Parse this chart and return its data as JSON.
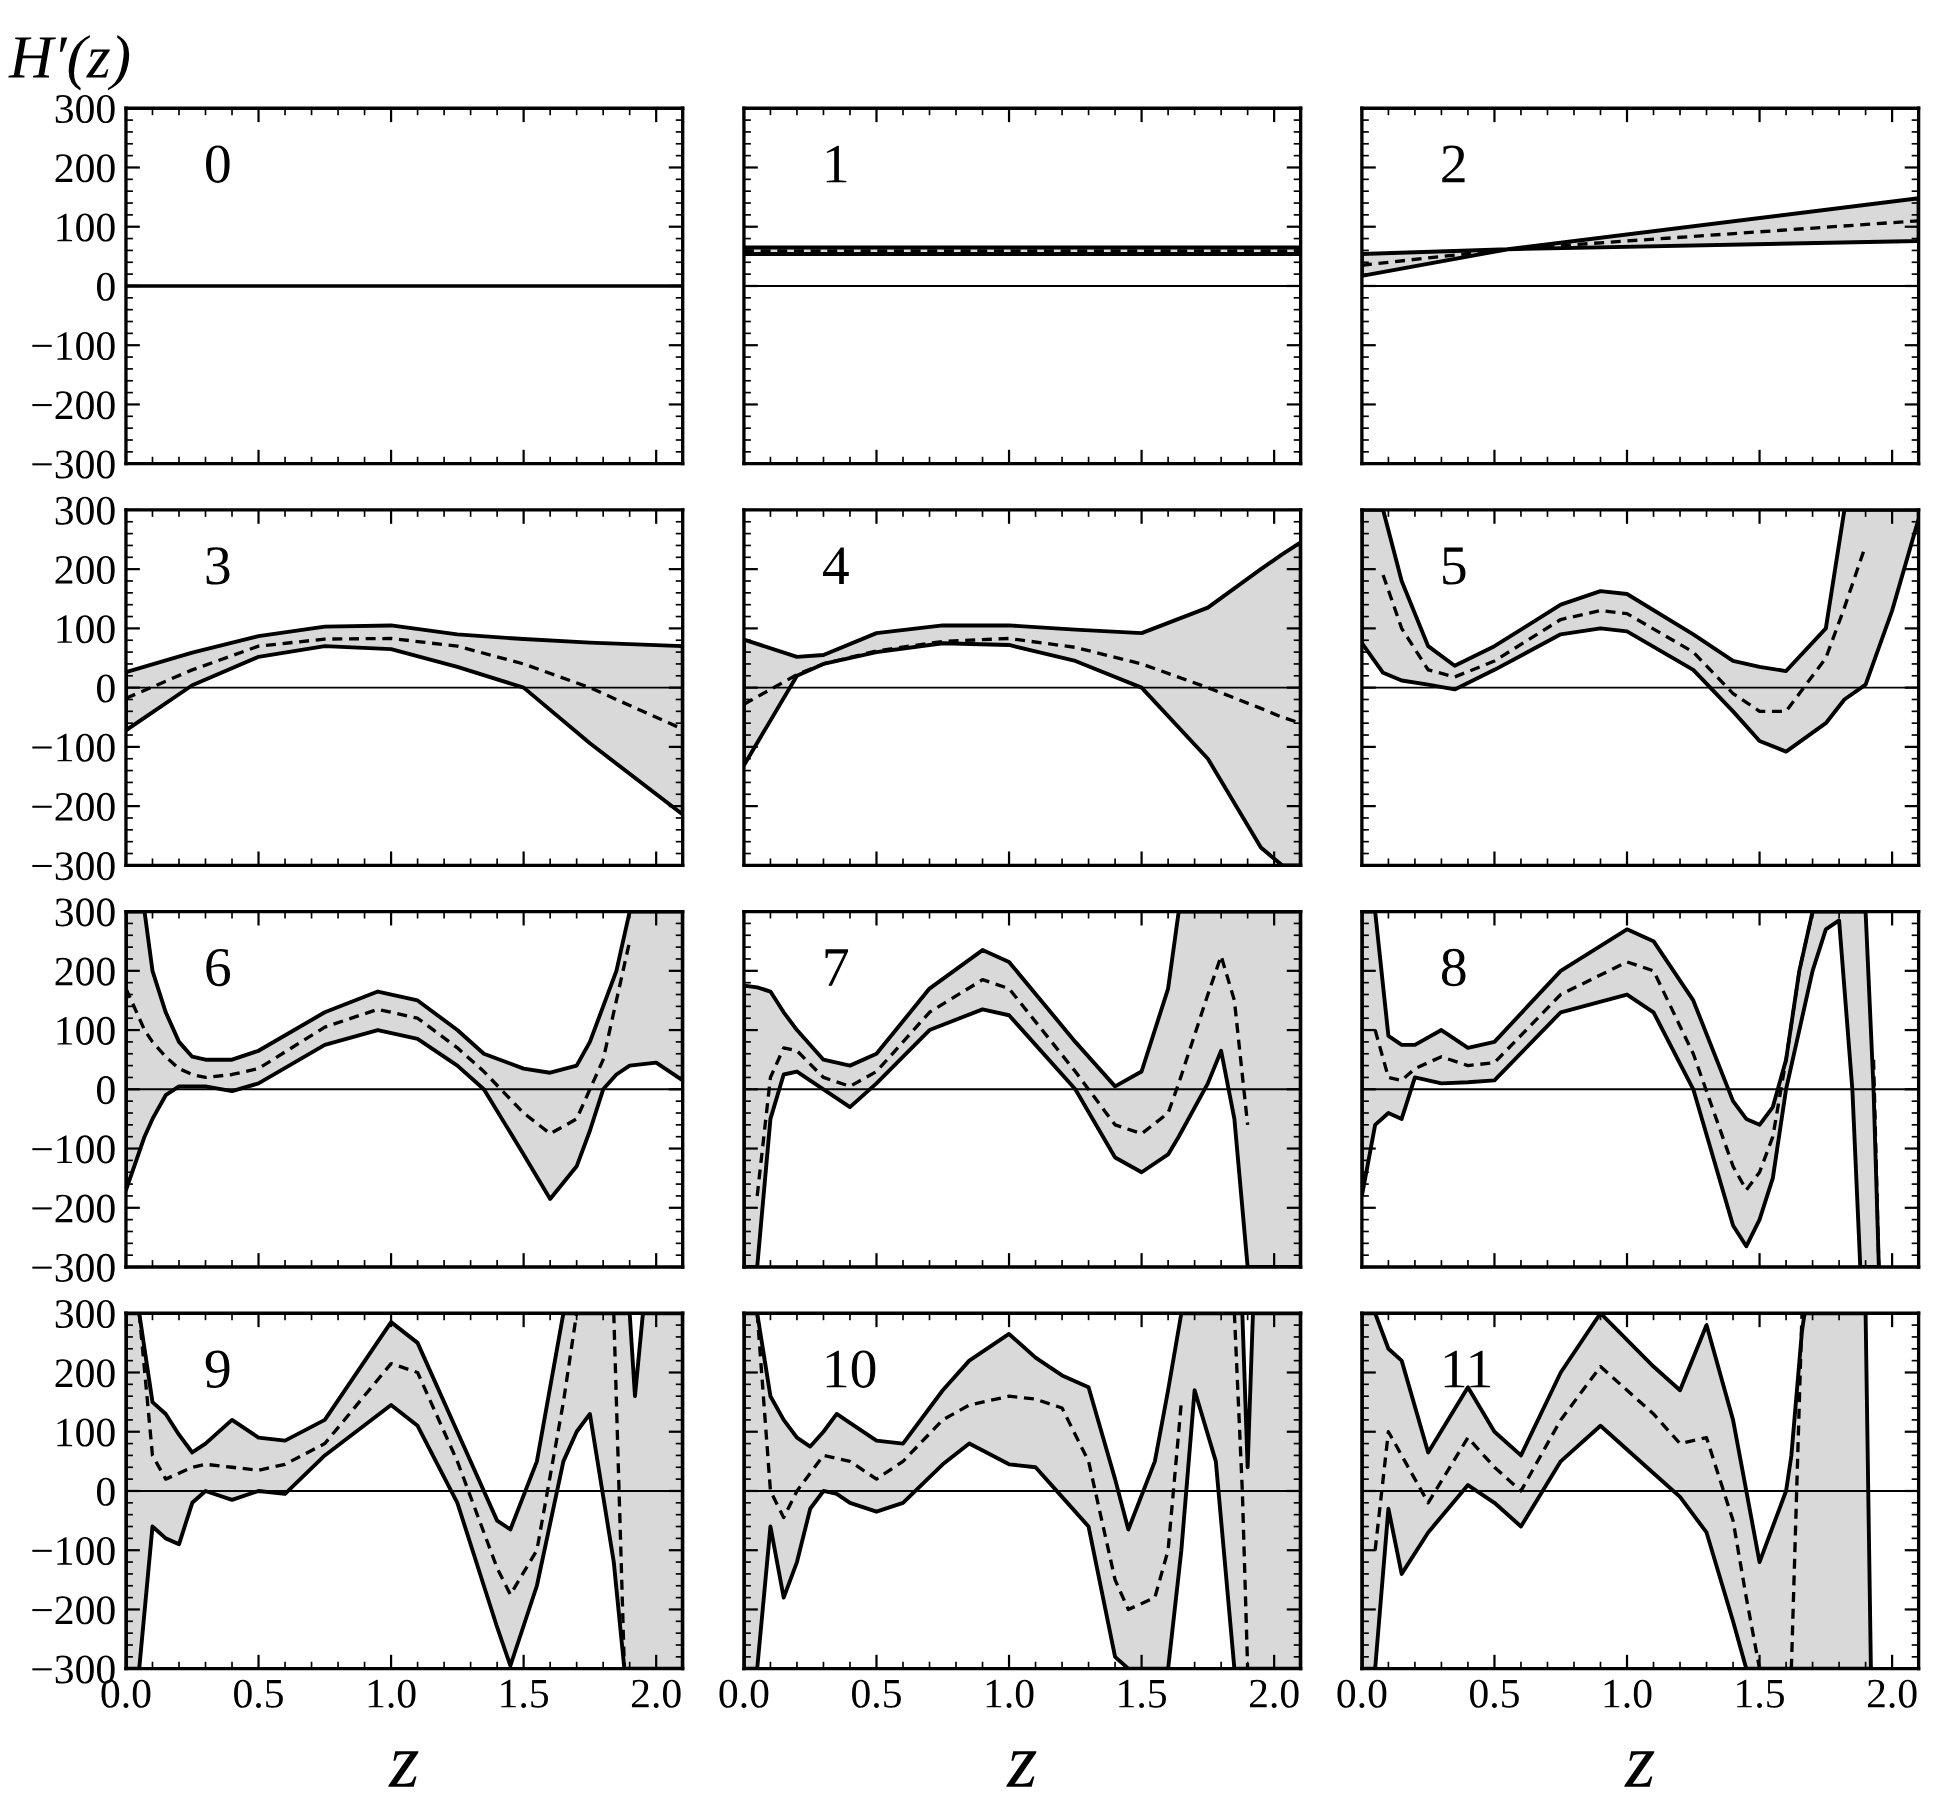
{
  "chart_data": [
    {
      "type": "line",
      "annotations": [
        "0"
      ],
      "ylabel": "H′(z)",
      "xlim": [
        0,
        2.1
      ],
      "ylim": [
        -300,
        300
      ],
      "tick_labels": "y",
      "xticks": [
        {
          "value": 0,
          "label": null
        },
        {
          "value": 0.5,
          "label": null
        },
        {
          "value": 1,
          "label": null
        },
        {
          "value": 1.5,
          "label": null
        },
        {
          "value": 2,
          "label": null
        }
      ],
      "yticks": [
        {
          "value": -300,
          "label": "−300"
        },
        {
          "value": -200,
          "label": "−200"
        },
        {
          "value": -100,
          "label": "−100"
        },
        0,
        100,
        200,
        300
      ],
      "series": [
        {
          "color": "#000000",
          "line_style": "solid",
          "x": [
            0,
            2.1
          ],
          "values": [
            0,
            0
          ]
        }
      ]
    },
    {
      "type": "line",
      "annotations": [
        "1"
      ],
      "xlim": [
        0,
        2.1
      ],
      "ylim": [
        -300,
        300
      ],
      "tick_labels": false,
      "xticks": [
        {
          "value": 0,
          "label": null
        },
        {
          "value": 0.5,
          "label": null
        },
        {
          "value": 1,
          "label": null
        },
        {
          "value": 1.5,
          "label": null
        },
        {
          "value": 2,
          "label": null
        }
      ],
      "yticks": [
        {
          "value": -300,
          "label": null
        },
        {
          "value": -200,
          "label": null
        },
        {
          "value": -100,
          "label": null
        },
        {
          "value": 0,
          "label": null
        },
        {
          "value": 100,
          "label": null
        },
        {
          "value": 200,
          "label": null
        },
        {
          "value": 300,
          "label": null
        }
      ],
      "ref_lines": [
        {
          "axis": "y",
          "value": 0,
          "color": "#000000"
        }
      ],
      "series": [
        {
          "color": "#000000",
          "line_style": "dashed",
          "x": [
            0,
            2.1
          ],
          "values": [
            59,
            59
          ],
          "lower": [
            54,
            54
          ],
          "upper": [
            65,
            65
          ]
        }
      ]
    },
    {
      "type": "line",
      "annotations": [
        "2"
      ],
      "xlim": [
        0,
        2.1
      ],
      "ylim": [
        -300,
        300
      ],
      "tick_labels": false,
      "xticks": [
        {
          "value": 0,
          "label": null
        },
        {
          "value": 0.5,
          "label": null
        },
        {
          "value": 1,
          "label": null
        },
        {
          "value": 1.5,
          "label": null
        },
        {
          "value": 2,
          "label": null
        }
      ],
      "yticks": [
        {
          "value": -300,
          "label": null
        },
        {
          "value": -200,
          "label": null
        },
        {
          "value": -100,
          "label": null
        },
        {
          "value": 0,
          "label": null
        },
        {
          "value": 100,
          "label": null
        },
        {
          "value": 200,
          "label": null
        },
        {
          "value": 300,
          "label": null
        }
      ],
      "ref_lines": [
        {
          "axis": "y",
          "value": 0,
          "color": "#000000"
        }
      ],
      "series": [
        {
          "color": "#000000",
          "line_style": "dashed",
          "x": [
            0,
            0.55,
            2.1
          ],
          "values": [
            35,
            62,
            110
          ],
          "lower": [
            17,
            62,
            76
          ],
          "upper": [
            54,
            62,
            148
          ]
        }
      ]
    },
    {
      "type": "line",
      "annotations": [
        "3"
      ],
      "xlim": [
        0,
        2.1
      ],
      "ylim": [
        -300,
        300
      ],
      "tick_labels": "y",
      "xticks": [
        {
          "value": 0,
          "label": null
        },
        {
          "value": 0.5,
          "label": null
        },
        {
          "value": 1,
          "label": null
        },
        {
          "value": 1.5,
          "label": null
        },
        {
          "value": 2,
          "label": null
        }
      ],
      "yticks": [
        {
          "value": -300,
          "label": "−300"
        },
        {
          "value": -200,
          "label": "−200"
        },
        {
          "value": -100,
          "label": "−100"
        },
        0,
        100,
        200,
        300
      ],
      "ref_lines": [
        {
          "axis": "y",
          "value": 0,
          "color": "#000000"
        }
      ],
      "series": [
        {
          "color": "#000000",
          "line_style": "dashed",
          "x": [
            0,
            0.25,
            0.5,
            0.75,
            1.0,
            1.25,
            1.5,
            1.75,
            2.1
          ],
          "values": [
            -18,
            30,
            70,
            82,
            83,
            70,
            40,
            0,
            -70
          ],
          "lower": [
            -72,
            4,
            52,
            70,
            65,
            35,
            0,
            -94,
            -214
          ],
          "upper": [
            26,
            59,
            87,
            103,
            105,
            90,
            82,
            76,
            70
          ]
        }
      ]
    },
    {
      "type": "line",
      "annotations": [
        "4"
      ],
      "xlim": [
        0,
        2.1
      ],
      "ylim": [
        -300,
        300
      ],
      "tick_labels": false,
      "xticks": [
        {
          "value": 0,
          "label": null
        },
        {
          "value": 0.5,
          "label": null
        },
        {
          "value": 1,
          "label": null
        },
        {
          "value": 1.5,
          "label": null
        },
        {
          "value": 2,
          "label": null
        }
      ],
      "yticks": [
        {
          "value": -300,
          "label": null
        },
        {
          "value": -200,
          "label": null
        },
        {
          "value": -100,
          "label": null
        },
        {
          "value": 0,
          "label": null
        },
        {
          "value": 100,
          "label": null
        },
        {
          "value": 200,
          "label": null
        },
        {
          "value": 300,
          "label": null
        }
      ],
      "ref_lines": [
        {
          "axis": "y",
          "value": 0,
          "color": "#000000"
        }
      ],
      "series": [
        {
          "color": "#000000",
          "line_style": "dashed",
          "x": [
            0,
            0.2,
            0.3,
            0.5,
            0.75,
            1.0,
            1.25,
            1.5,
            1.75,
            1.95,
            2.03,
            2.1
          ],
          "values": [
            -28,
            22,
            40,
            62,
            78,
            83,
            68,
            40,
            0,
            -35,
            -50,
            -60
          ],
          "lower": [
            -131,
            20,
            40,
            60,
            75,
            72,
            45,
            0,
            -120,
            -270,
            -300,
            -300
          ],
          "upper": [
            81,
            52,
            55,
            92,
            105,
            105,
            98,
            92,
            135,
            200,
            225,
            245
          ]
        }
      ]
    },
    {
      "type": "line",
      "annotations": [
        "5"
      ],
      "xlim": [
        0,
        2.1
      ],
      "ylim": [
        -300,
        300
      ],
      "tick_labels": false,
      "xticks": [
        {
          "value": 0,
          "label": null
        },
        {
          "value": 0.5,
          "label": null
        },
        {
          "value": 1,
          "label": null
        },
        {
          "value": 1.5,
          "label": null
        },
        {
          "value": 2,
          "label": null
        }
      ],
      "yticks": [
        {
          "value": -300,
          "label": null
        },
        {
          "value": -200,
          "label": null
        },
        {
          "value": -100,
          "label": null
        },
        {
          "value": 0,
          "label": null
        },
        {
          "value": 100,
          "label": null
        },
        {
          "value": 200,
          "label": null
        },
        {
          "value": 300,
          "label": null
        }
      ],
      "ref_lines": [
        {
          "axis": "y",
          "value": 0,
          "color": "#000000"
        }
      ],
      "series": [
        {
          "color": "#000000",
          "line_style": "dashed",
          "x": [
            0,
            0.08,
            0.15,
            0.25,
            0.35,
            0.5,
            0.75,
            0.9,
            1.0,
            1.25,
            1.4,
            1.5,
            1.6,
            1.75,
            1.82,
            1.9,
            2.0,
            2.1
          ],
          "values": [
            null,
            190,
            100,
            30,
            18,
            45,
            115,
            130,
            125,
            60,
            -10,
            -40,
            -40,
            50,
            135,
            240,
            null,
            null
          ],
          "lower": [
            75,
            25,
            12,
            5,
            -3,
            30,
            90,
            100,
            95,
            30,
            -40,
            -90,
            -108,
            -60,
            -20,
            5,
            130,
            285
          ],
          "upper": [
            300,
            300,
            180,
            70,
            37,
            70,
            140,
            163,
            158,
            90,
            45,
            35,
            28,
            100,
            300,
            300,
            300,
            300
          ]
        }
      ]
    },
    {
      "type": "line",
      "annotations": [
        "6"
      ],
      "xlim": [
        0,
        2.1
      ],
      "ylim": [
        -300,
        300
      ],
      "tick_labels": "y",
      "xticks": [
        {
          "value": 0,
          "label": null
        },
        {
          "value": 0.5,
          "label": null
        },
        {
          "value": 1,
          "label": null
        },
        {
          "value": 1.5,
          "label": null
        },
        {
          "value": 2,
          "label": null
        }
      ],
      "yticks": [
        {
          "value": -300,
          "label": "−300"
        },
        {
          "value": -200,
          "label": "−200"
        },
        {
          "value": -100,
          "label": "−100"
        },
        0,
        100,
        200,
        300
      ],
      "ref_lines": [
        {
          "axis": "y",
          "value": 0,
          "color": "#000000"
        }
      ],
      "series": [
        {
          "color": "#000000",
          "line_style": "dashed",
          "x": [
            0,
            0.07,
            0.1,
            0.15,
            0.2,
            0.25,
            0.3,
            0.4,
            0.5,
            0.75,
            0.95,
            1.1,
            1.25,
            1.35,
            1.5,
            1.6,
            1.7,
            1.75,
            1.8,
            1.85,
            1.9,
            2.0,
            2.1
          ],
          "values": [
            170,
            100,
            80,
            55,
            35,
            25,
            20,
            25,
            35,
            105,
            135,
            120,
            70,
            30,
            -40,
            -75,
            -50,
            0,
            50,
            150,
            250,
            null,
            null
          ],
          "lower": [
            -170,
            -80,
            -50,
            -10,
            5,
            5,
            5,
            -3,
            10,
            75,
            100,
            85,
            40,
            0,
            -110,
            -185,
            -130,
            -70,
            0,
            25,
            40,
            45,
            15
          ],
          "upper": [
            300,
            300,
            200,
            130,
            80,
            55,
            50,
            50,
            65,
            130,
            165,
            150,
            100,
            60,
            35,
            28,
            40,
            80,
            140,
            200,
            300,
            300,
            300
          ]
        }
      ]
    },
    {
      "type": "line",
      "annotations": [
        "7"
      ],
      "xlim": [
        0,
        2.1
      ],
      "ylim": [
        -300,
        300
      ],
      "tick_labels": false,
      "xticks": [
        {
          "value": 0,
          "label": null
        },
        {
          "value": 0.5,
          "label": null
        },
        {
          "value": 1,
          "label": null
        },
        {
          "value": 1.5,
          "label": null
        },
        {
          "value": 2,
          "label": null
        }
      ],
      "yticks": [
        {
          "value": -300,
          "label": null
        },
        {
          "value": -200,
          "label": null
        },
        {
          "value": -100,
          "label": null
        },
        {
          "value": 0,
          "label": null
        },
        {
          "value": 100,
          "label": null
        },
        {
          "value": 200,
          "label": null
        },
        {
          "value": 300,
          "label": null
        }
      ],
      "ref_lines": [
        {
          "axis": "y",
          "value": 0,
          "color": "#000000"
        }
      ],
      "series": [
        {
          "color": "#000000",
          "line_style": "dashed",
          "x": [
            0,
            0.05,
            0.1,
            0.15,
            0.2,
            0.3,
            0.4,
            0.5,
            0.7,
            0.9,
            1.0,
            1.25,
            1.4,
            1.5,
            1.6,
            1.64,
            1.75,
            1.8,
            1.85,
            1.9,
            2.0,
            2.1
          ],
          "values": [
            null,
            -180,
            20,
            70,
            65,
            20,
            5,
            30,
            130,
            185,
            170,
            30,
            -60,
            -75,
            -40,
            10,
            160,
            225,
            150,
            -60,
            null,
            null
          ],
          "lower": [
            -300,
            -300,
            -50,
            25,
            30,
            0,
            -30,
            10,
            100,
            135,
            125,
            0,
            -115,
            -140,
            -110,
            -80,
            10,
            65,
            -50,
            -300,
            -300,
            -300
          ],
          "upper": [
            175,
            172,
            165,
            130,
            100,
            50,
            40,
            60,
            170,
            235,
            215,
            80,
            5,
            30,
            170,
            300,
            300,
            300,
            300,
            300,
            300,
            300
          ]
        }
      ]
    },
    {
      "type": "line",
      "annotations": [
        "8"
      ],
      "xlim": [
        0,
        2.1
      ],
      "ylim": [
        -300,
        300
      ],
      "tick_labels": false,
      "xticks": [
        {
          "value": 0,
          "label": null
        },
        {
          "value": 0.5,
          "label": null
        },
        {
          "value": 1,
          "label": null
        },
        {
          "value": 1.5,
          "label": null
        },
        {
          "value": 2,
          "label": null
        }
      ],
      "yticks": [
        {
          "value": -300,
          "label": null
        },
        {
          "value": -200,
          "label": null
        },
        {
          "value": -100,
          "label": null
        },
        {
          "value": 0,
          "label": null
        },
        {
          "value": 100,
          "label": null
        },
        {
          "value": 200,
          "label": null
        },
        {
          "value": 300,
          "label": null
        }
      ],
      "ref_lines": [
        {
          "axis": "y",
          "value": 0,
          "color": "#000000"
        }
      ],
      "series": [
        {
          "color": "#000000",
          "line_style": "dashed",
          "x": [
            0,
            0.05,
            0.1,
            0.15,
            0.2,
            0.3,
            0.4,
            0.5,
            0.75,
            1.0,
            1.1,
            1.25,
            1.4,
            1.45,
            1.5,
            1.55,
            1.6,
            1.65,
            1.7,
            1.75,
            1.8,
            1.85,
            1.88,
            1.9,
            1.93,
            1.95
          ],
          "values": [
            null,
            100,
            20,
            15,
            35,
            55,
            40,
            45,
            160,
            215,
            200,
            60,
            -130,
            -170,
            -140,
            -80,
            50,
            200,
            300,
            null,
            null,
            null,
            null,
            null,
            50,
            -300
          ],
          "lower": [
            -180,
            -60,
            -40,
            -50,
            20,
            10,
            12,
            15,
            130,
            160,
            130,
            0,
            -230,
            -265,
            -220,
            -150,
            0,
            100,
            200,
            270,
            285,
            0,
            -300,
            -300,
            -300,
            -300
          ],
          "upper": [
            300,
            300,
            90,
            75,
            75,
            100,
            70,
            80,
            200,
            270,
            250,
            150,
            -20,
            -50,
            -60,
            -30,
            50,
            200,
            300,
            300,
            300,
            300,
            300,
            300,
            0,
            -300
          ]
        }
      ]
    },
    {
      "type": "line",
      "annotations": [
        "9"
      ],
      "xlabel": "z",
      "xlim": [
        0,
        2.1
      ],
      "ylim": [
        -300,
        300
      ],
      "xticks": [
        {
          "value": 0,
          "label": "0.0"
        },
        {
          "value": 0.5,
          "label": "0.5"
        },
        {
          "value": 1,
          "label": "1.0"
        },
        {
          "value": 1.5,
          "label": "1.5"
        },
        {
          "value": 2,
          "label": "2.0"
        }
      ],
      "yticks": [
        {
          "value": -300,
          "label": "−300"
        },
        {
          "value": -200,
          "label": "−200"
        },
        {
          "value": -100,
          "label": "−100"
        },
        0,
        100,
        200,
        300
      ],
      "ref_lines": [
        {
          "axis": "y",
          "value": 0,
          "color": "#000000"
        }
      ],
      "series": [
        {
          "color": "#000000",
          "line_style": "dashed",
          "x": [
            0,
            0.05,
            0.1,
            0.15,
            0.2,
            0.25,
            0.3,
            0.4,
            0.5,
            0.6,
            0.75,
            1.0,
            1.1,
            1.25,
            1.4,
            1.45,
            1.55,
            1.65,
            1.7,
            1.75,
            1.84,
            1.88,
            1.9,
            1.92,
            1.95,
            2.0,
            2.1
          ],
          "values": [
            null,
            300,
            60,
            20,
            30,
            40,
            45,
            40,
            35,
            45,
            80,
            215,
            200,
            50,
            -130,
            -175,
            -100,
            150,
            300,
            null,
            300,
            -300,
            null,
            null,
            null,
            null,
            null
          ],
          "lower": [
            -300,
            -300,
            -60,
            -80,
            -90,
            -20,
            0,
            -15,
            0,
            -5,
            60,
            145,
            110,
            -20,
            -230,
            -295,
            -160,
            50,
            100,
            130,
            -120,
            -300,
            -300,
            -300,
            -300,
            -300,
            -300
          ],
          "upper": [
            300,
            300,
            150,
            130,
            95,
            65,
            80,
            120,
            90,
            85,
            120,
            285,
            250,
            100,
            -50,
            -65,
            50,
            300,
            300,
            300,
            300,
            300,
            300,
            160,
            300,
            300,
            300
          ]
        }
      ]
    },
    {
      "type": "line",
      "annotations": [
        "10"
      ],
      "xlabel": "z",
      "xlim": [
        0,
        2.1
      ],
      "ylim": [
        -300,
        300
      ],
      "tick_labels": "x",
      "xticks": [
        {
          "value": 0,
          "label": "0.0"
        },
        {
          "value": 0.5,
          "label": "0.5"
        },
        {
          "value": 1,
          "label": "1.0"
        },
        {
          "value": 1.5,
          "label": "1.5"
        },
        {
          "value": 2,
          "label": "2.0"
        }
      ],
      "yticks": [
        {
          "value": -300,
          "label": null
        },
        {
          "value": -200,
          "label": null
        },
        {
          "value": -100,
          "label": null
        },
        {
          "value": 0,
          "label": null
        },
        {
          "value": 100,
          "label": null
        },
        {
          "value": 200,
          "label": null
        },
        {
          "value": 300,
          "label": null
        }
      ],
      "ref_lines": [
        {
          "axis": "y",
          "value": 0,
          "color": "#000000"
        }
      ],
      "series": [
        {
          "color": "#000000",
          "line_style": "dashed",
          "x": [
            0,
            0.05,
            0.1,
            0.15,
            0.2,
            0.25,
            0.3,
            0.35,
            0.4,
            0.5,
            0.6,
            0.75,
            0.85,
            1.0,
            1.1,
            1.2,
            1.3,
            1.4,
            1.45,
            1.55,
            1.6,
            1.65,
            1.7,
            1.78,
            1.85,
            1.88,
            1.9,
            1.92,
            2.0,
            2.1
          ],
          "values": [
            null,
            300,
            0,
            -45,
            0,
            30,
            60,
            55,
            50,
            20,
            50,
            120,
            145,
            160,
            155,
            140,
            50,
            -150,
            -200,
            -180,
            -100,
            150,
            null,
            null,
            300,
            0,
            -300,
            null,
            null,
            null
          ],
          "lower": [
            -300,
            -300,
            -60,
            -180,
            -120,
            -30,
            0,
            -5,
            -20,
            -35,
            -20,
            45,
            80,
            45,
            40,
            -10,
            -60,
            -280,
            -300,
            -300,
            -300,
            -100,
            170,
            50,
            -300,
            -300,
            -300,
            -300,
            -300,
            -300
          ],
          "upper": [
            300,
            300,
            160,
            120,
            90,
            75,
            100,
            130,
            115,
            85,
            80,
            170,
            220,
            265,
            225,
            195,
            175,
            20,
            -65,
            50,
            170,
            300,
            300,
            300,
            300,
            300,
            40,
            300,
            300,
            300
          ]
        }
      ]
    },
    {
      "type": "line",
      "annotations": [
        "11"
      ],
      "xlabel": "z",
      "xlim": [
        0,
        2.1
      ],
      "ylim": [
        -300,
        300
      ],
      "tick_labels": "x",
      "xticks": [
        {
          "value": 0,
          "label": "0.0"
        },
        {
          "value": 0.5,
          "label": "0.5"
        },
        {
          "value": 1,
          "label": "1.0"
        },
        {
          "value": 1.5,
          "label": "1.5"
        },
        {
          "value": 2,
          "label": "2.0"
        }
      ],
      "yticks": [
        {
          "value": -300,
          "label": null
        },
        {
          "value": -200,
          "label": null
        },
        {
          "value": -100,
          "label": null
        },
        {
          "value": 0,
          "label": null
        },
        {
          "value": 100,
          "label": null
        },
        {
          "value": 200,
          "label": null
        },
        {
          "value": 300,
          "label": null
        }
      ],
      "ref_lines": [
        {
          "axis": "y",
          "value": 0,
          "color": "#000000"
        }
      ],
      "series": [
        {
          "color": "#000000",
          "line_style": "dashed",
          "x": [
            0,
            0.05,
            0.1,
            0.15,
            0.25,
            0.4,
            0.5,
            0.6,
            0.75,
            0.9,
            1.1,
            1.2,
            1.3,
            1.4,
            1.45,
            1.5,
            1.6,
            1.62,
            1.66,
            1.67,
            1.8,
            1.9,
            1.91,
            1.92
          ],
          "values": [
            null,
            -100,
            100,
            60,
            -20,
            90,
            40,
            0,
            120,
            210,
            130,
            80,
            90,
            -50,
            -180,
            -300,
            null,
            -300,
            300,
            null,
            null,
            null,
            null,
            null
          ],
          "lower": [
            -300,
            -300,
            -30,
            -140,
            -70,
            10,
            -20,
            -60,
            50,
            110,
            30,
            -10,
            -70,
            -220,
            -300,
            -300,
            -300,
            -300,
            -300,
            -300,
            -300,
            -300,
            -300,
            -300
          ],
          "upper": [
            300,
            300,
            240,
            220,
            65,
            175,
            100,
            60,
            200,
            300,
            210,
            170,
            280,
            120,
            0,
            -120,
            0,
            60,
            270,
            300,
            300,
            300,
            0,
            -300
          ]
        }
      ]
    }
  ]
}
